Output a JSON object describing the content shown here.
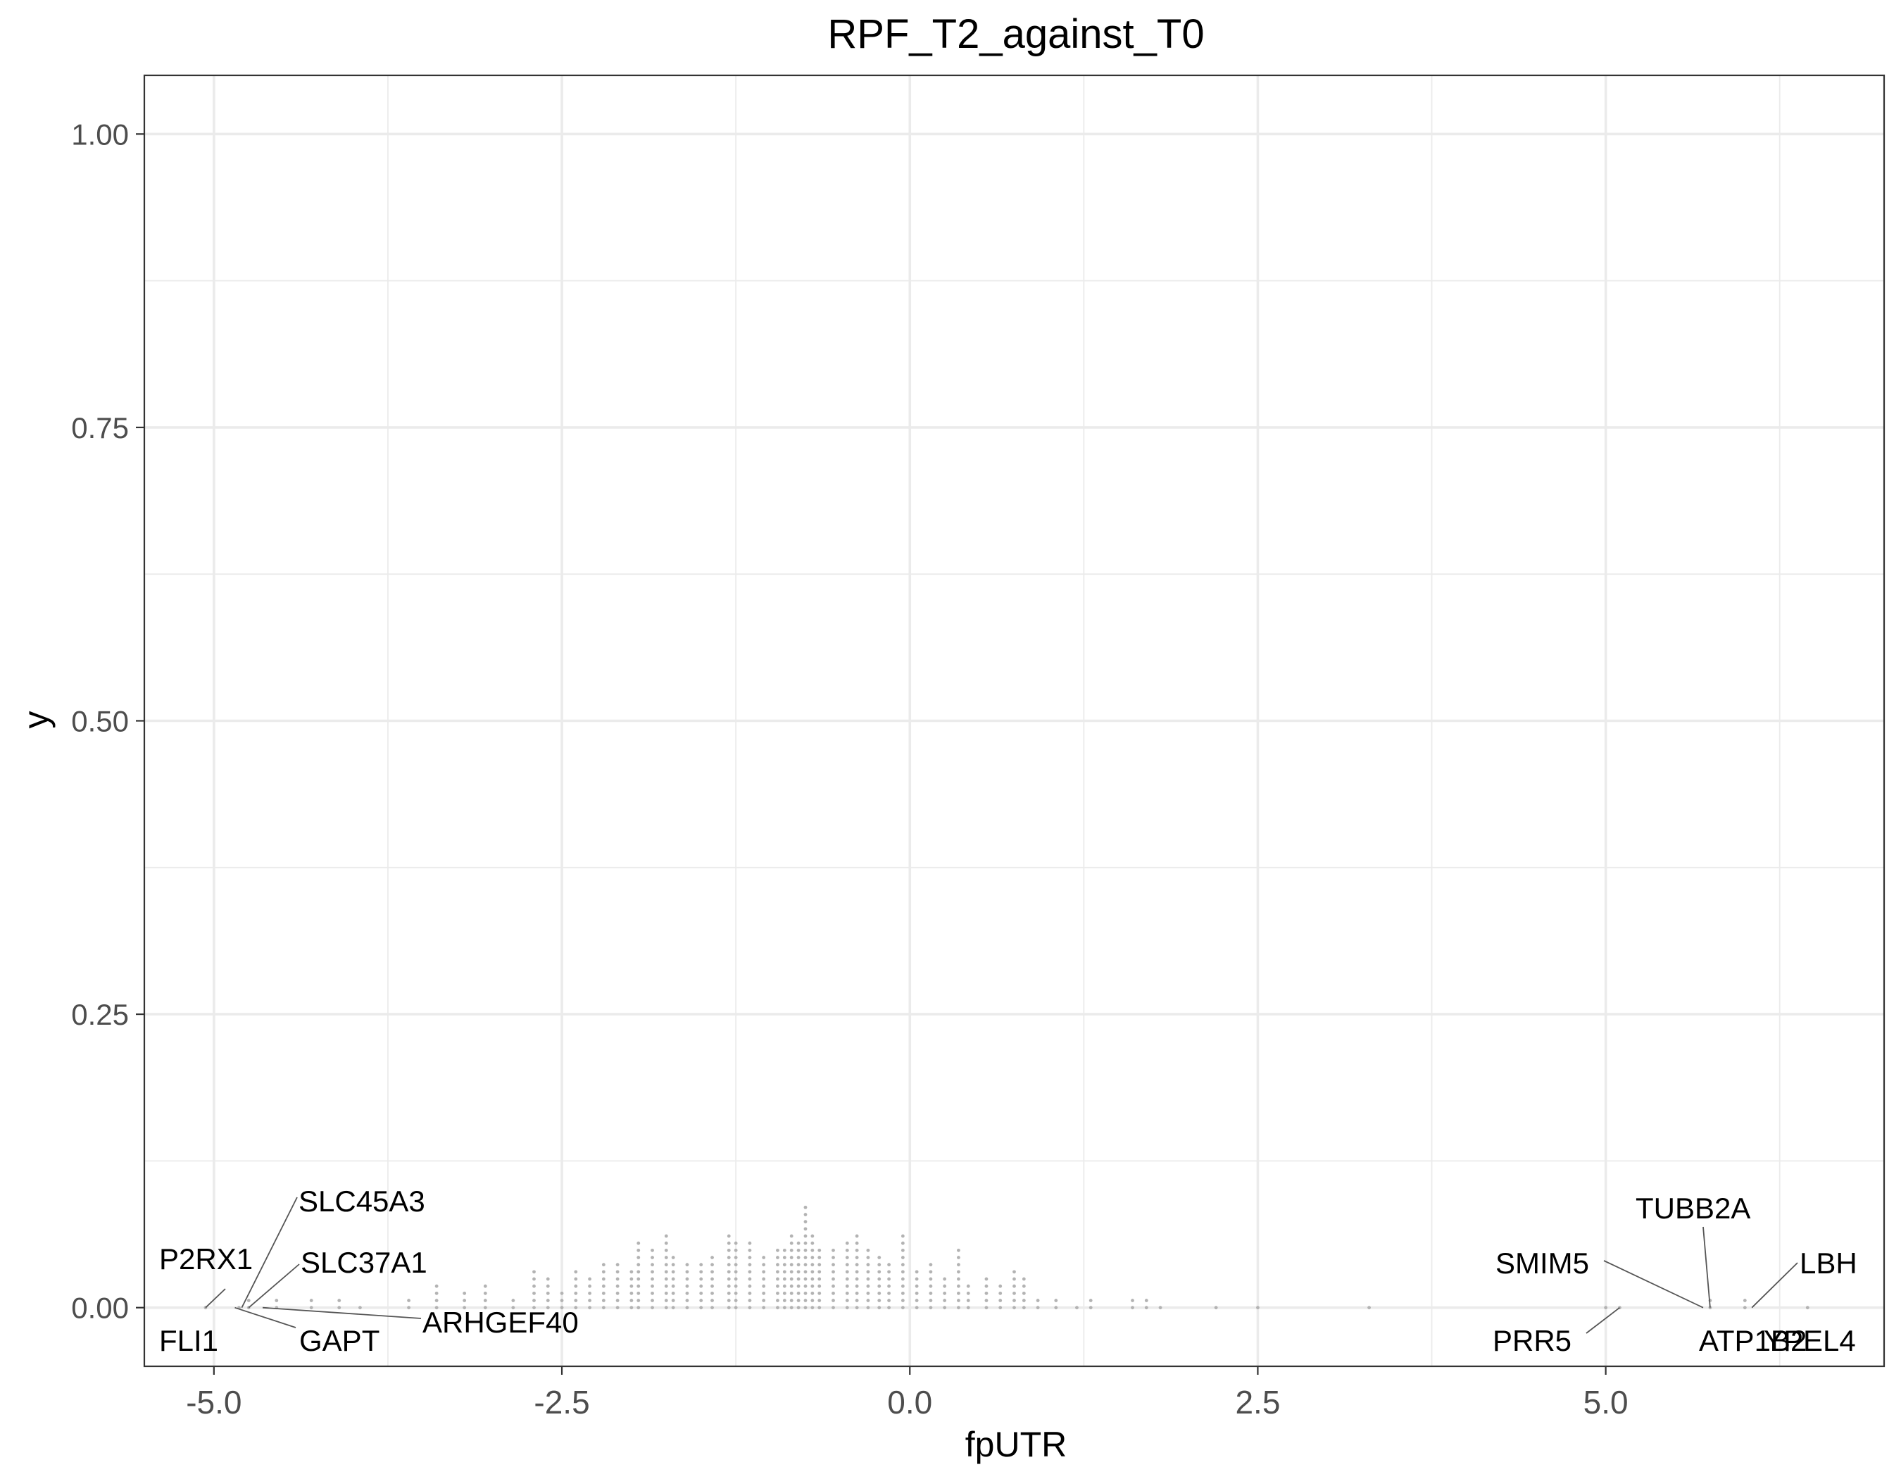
{
  "chart_data": {
    "type": "scatter",
    "title": "RPF_T2_against_T0",
    "xlabel": "fpUTR",
    "ylabel": "y",
    "xlim": [
      -5.5,
      7.0
    ],
    "ylim": [
      -0.05,
      1.05
    ],
    "x_ticks": [
      -5.0,
      -2.5,
      0.0,
      2.5,
      5.0
    ],
    "x_tick_labels": [
      "-5.0",
      "-2.5",
      "0.0",
      "2.5",
      "5.0"
    ],
    "y_ticks": [
      0.0,
      0.25,
      0.5,
      0.75,
      1.0
    ],
    "y_tick_labels": [
      "0.00",
      "0.25",
      "0.50",
      "0.75",
      "1.00"
    ],
    "grid": true,
    "point_color": "#b3b3b3",
    "stacks": [
      [
        -5.06,
        1
      ],
      [
        -4.82,
        1
      ],
      [
        -4.75,
        2
      ],
      [
        -4.55,
        2
      ],
      [
        -4.3,
        2
      ],
      [
        -4.1,
        2
      ],
      [
        -3.95,
        1
      ],
      [
        -3.6,
        2
      ],
      [
        -3.4,
        4
      ],
      [
        -3.2,
        3
      ],
      [
        -3.05,
        4
      ],
      [
        -2.85,
        2
      ],
      [
        -2.7,
        6
      ],
      [
        -2.6,
        5
      ],
      [
        -2.5,
        3
      ],
      [
        -2.4,
        6
      ],
      [
        -2.3,
        5
      ],
      [
        -2.2,
        7
      ],
      [
        -2.1,
        7
      ],
      [
        -2.0,
        6
      ],
      [
        -1.95,
        10
      ],
      [
        -1.85,
        9
      ],
      [
        -1.75,
        11
      ],
      [
        -1.7,
        8
      ],
      [
        -1.6,
        7
      ],
      [
        -1.5,
        7
      ],
      [
        -1.42,
        8
      ],
      [
        -1.3,
        11
      ],
      [
        -1.25,
        10
      ],
      [
        -1.15,
        10
      ],
      [
        -1.05,
        8
      ],
      [
        -0.95,
        9
      ],
      [
        -0.9,
        9
      ],
      [
        -0.85,
        11
      ],
      [
        -0.8,
        10
      ],
      [
        -0.75,
        15
      ],
      [
        -0.7,
        11
      ],
      [
        -0.65,
        9
      ],
      [
        -0.55,
        9
      ],
      [
        -0.45,
        10
      ],
      [
        -0.38,
        11
      ],
      [
        -0.3,
        9
      ],
      [
        -0.22,
        8
      ],
      [
        -0.15,
        7
      ],
      [
        -0.05,
        11
      ],
      [
        0.05,
        6
      ],
      [
        0.15,
        7
      ],
      [
        0.25,
        5
      ],
      [
        0.35,
        9
      ],
      [
        0.42,
        4
      ],
      [
        0.55,
        5
      ],
      [
        0.65,
        4
      ],
      [
        0.75,
        6
      ],
      [
        0.82,
        5
      ],
      [
        0.92,
        2
      ],
      [
        1.05,
        2
      ],
      [
        1.2,
        1
      ],
      [
        1.3,
        2
      ],
      [
        1.6,
        2
      ],
      [
        1.7,
        2
      ],
      [
        1.8,
        1
      ],
      [
        2.2,
        1
      ],
      [
        2.5,
        1
      ],
      [
        3.3,
        1
      ],
      [
        5.0,
        1
      ],
      [
        5.1,
        1
      ],
      [
        5.75,
        2
      ],
      [
        6.0,
        2
      ],
      [
        6.45,
        1
      ]
    ],
    "annotations": [
      {
        "label": "P2RX1",
        "x": -5.06,
        "y": 0.0
      },
      {
        "label": "FLI1",
        "x": -5.0,
        "y": 0.0
      },
      {
        "label": "SLC45A3",
        "x": -4.8,
        "y": 0.0
      },
      {
        "label": "SLC37A1",
        "x": -4.75,
        "y": 0.0
      },
      {
        "label": "GAPT",
        "x": -4.85,
        "y": 0.0
      },
      {
        "label": "ARHGEF40",
        "x": -4.65,
        "y": 0.0
      },
      {
        "label": "TUBB2A",
        "x": 5.75,
        "y": 0.0
      },
      {
        "label": "SMIM5",
        "x": 5.7,
        "y": 0.0
      },
      {
        "label": "LBH",
        "x": 6.05,
        "y": 0.0
      },
      {
        "label": "PRR5",
        "x": 5.1,
        "y": 0.0
      },
      {
        "label": "ATP1B2",
        "x": 6.3,
        "y": 0.0
      },
      {
        "label": "YPEL4",
        "x": 6.45,
        "y": 0.0
      }
    ]
  }
}
